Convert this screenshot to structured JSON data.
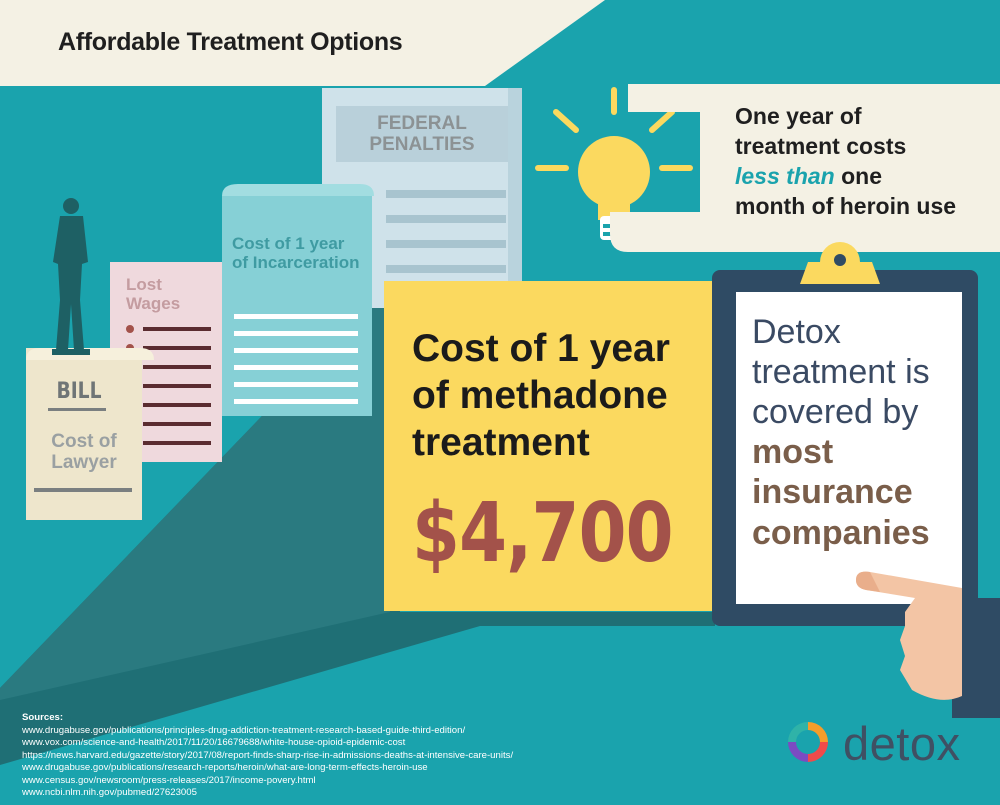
{
  "title": "Affordable Treatment Options",
  "documents": {
    "federal": "FEDERAL PENALTIES",
    "incarceration": "Cost of 1 year of Incarceration",
    "wages": "Lost Wages",
    "bill": "BILL",
    "lawyer": "Cost of Lawyer"
  },
  "callout": {
    "line1": "One year of",
    "line2": "treatment costs",
    "emphasis": "less than",
    "line3_rest": " one",
    "line4": "month of heroin use"
  },
  "methadone": {
    "label": "Cost of 1 year of methadone treatment",
    "price": "$4,700"
  },
  "clipboard": {
    "text": "Detox treatment is covered by",
    "strong": "most insurance companies"
  },
  "sources": {
    "heading": "Sources:",
    "urls": [
      "www.drugabuse.gov/publications/principles-drug-addiction-treatment-research-based-guide-third-edition/",
      "www.vox.com/science-and-health/2017/11/20/16679688/white-house-opioid-epidemic-cost",
      "https://news.harvard.edu/gazette/story/2017/08/report-finds-sharp-rise-in-admissions-deaths-at-intensive-care-units/",
      "www.drugabuse.gov/publications/research-reports/heroin/what-are-long-term-effects-heroin-use",
      "www.census.gov/newsroom/press-releases/2017/income-povery.html",
      "www.ncbi.nlm.nih.gov/pubmed/27623005"
    ]
  },
  "brand": "detox",
  "colors": {
    "teal": "#1aa3ad",
    "cream": "#f4f1e4",
    "yellow": "#fbd95f",
    "price_red": "#a3524a",
    "dark_navy": "#2f4b64"
  }
}
